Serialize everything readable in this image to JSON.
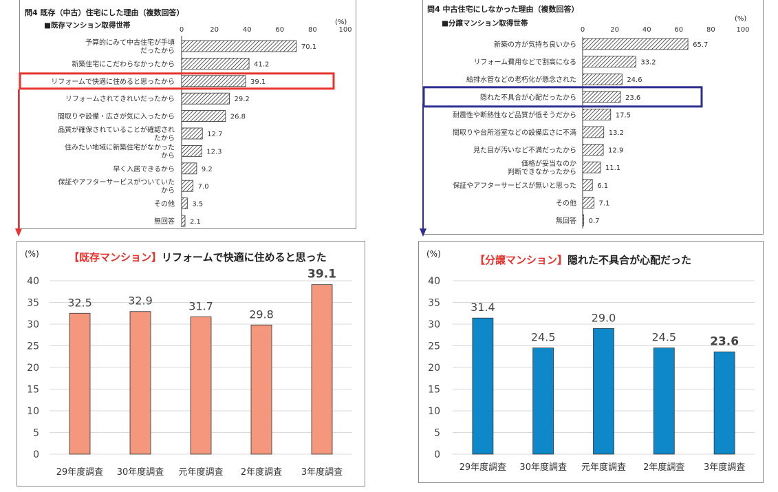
{
  "charts": {
    "top_left": {
      "question": "問4  既存（中古）住宅にした理由（複数回答）",
      "subtitle": "■既存マンション取得世帯",
      "unit": "(%)",
      "chart_data": {
        "type": "bar",
        "orientation": "horizontal",
        "categories": [
          [
            "予算的にみて中古住宅が手頃",
            "だったから"
          ],
          [
            "新築住宅にこだわらなかったから"
          ],
          [
            "リフォームで快適に住めると思ったから"
          ],
          [
            "リフォームされてきれいだったから"
          ],
          [
            "間取りや設備・広さが気に入ったから"
          ],
          [
            "品質が確保されていることが確認され",
            "たから"
          ],
          [
            "住みたい地域に新築住宅がなかった",
            "から"
          ],
          [
            "早く入居できるから"
          ],
          [
            "保証やアフターサービスがついていた",
            "から"
          ],
          [
            "その他"
          ],
          [
            "無回答"
          ]
        ],
        "values": [
          70.1,
          41.2,
          39.1,
          29.2,
          26.8,
          12.7,
          12.3,
          9.2,
          7.0,
          3.5,
          2.1
        ],
        "value_labels": [
          "70.1",
          "41.2",
          "39.1",
          "29.2",
          "26.8",
          "12.7",
          "12.3",
          "9.2",
          "7.0",
          "3.5",
          "2.1"
        ],
        "ticks": [
          "0",
          "20",
          "40",
          "60",
          "80",
          "100"
        ],
        "xlim": [
          0,
          100
        ],
        "highlight_index": 2,
        "highlight_color": "#e8322d"
      }
    },
    "top_right": {
      "question": "問4 中古住宅にしなかった理由（複数回答）",
      "subtitle": "■分譲マンション取得世帯",
      "unit": "(%)",
      "chart_data": {
        "type": "bar",
        "orientation": "horizontal",
        "categories": [
          [
            "新築の方が気持ち良いから"
          ],
          [
            "リフォーム費用などで割高になる"
          ],
          [
            "給排水管などの老朽化が懸念された"
          ],
          [
            "隠れた不具合が心配だったから"
          ],
          [
            "耐震性や断熱性など品質が低そうだから"
          ],
          [
            "間取りや台所浴室などの設備広さに不満"
          ],
          [
            "見た目が汚いなど不満だったから"
          ],
          [
            "価格が妥当なのか",
            "判断できなかったから"
          ],
          [
            "保証やアフターサービスが無いと思った"
          ],
          [
            "その他"
          ],
          [
            "無回答"
          ]
        ],
        "values": [
          65.7,
          33.2,
          24.6,
          23.6,
          17.5,
          13.2,
          12.9,
          11.1,
          6.1,
          7.1,
          0.7
        ],
        "value_labels": [
          "65.7",
          "33.2",
          "24.6",
          "23.6",
          "17.5",
          "13.2",
          "12.9",
          "11.1",
          "6.1",
          "7.1",
          "0.7"
        ],
        "ticks": [
          "0",
          "20",
          "40",
          "60",
          "80",
          "100"
        ],
        "xlim": [
          0,
          100
        ],
        "highlight_index": 3,
        "highlight_color": "#2e2f8f"
      }
    },
    "bottom_left": {
      "title_bracket": "【既存マンション】",
      "title_rest": "リフォームで快適に住めると思った",
      "unit": "(%)",
      "chart_data": {
        "type": "bar",
        "categories": [
          "29年度調査",
          "30年度調査",
          "元年度調査",
          "2年度調査",
          "3年度調査"
        ],
        "values": [
          32.5,
          32.9,
          31.7,
          29.8,
          39.1
        ],
        "value_labels": [
          "32.5",
          "32.9",
          "31.7",
          "29.8",
          "39.1"
        ],
        "bold_index": 4,
        "ylim": [
          0,
          40
        ],
        "yticks": [
          "0",
          "5",
          "10",
          "15",
          "20",
          "25",
          "30",
          "35",
          "40"
        ],
        "color": "#f4977c"
      }
    },
    "bottom_right": {
      "title_bracket": "【分譲マンション】",
      "title_rest": "隠れた不具合が心配だった",
      "unit": "(%)",
      "chart_data": {
        "type": "bar",
        "categories": [
          "29年度調査",
          "30年度調査",
          "元年度調査",
          "2年度調査",
          "3年度調査"
        ],
        "values": [
          31.4,
          24.5,
          29.0,
          24.5,
          23.6
        ],
        "value_labels": [
          "31.4",
          "24.5",
          "29.0",
          "24.5",
          "23.6"
        ],
        "bold_index": 4,
        "ylim": [
          0,
          40
        ],
        "yticks": [
          "0",
          "5",
          "10",
          "15",
          "20",
          "25",
          "30",
          "35",
          "40"
        ],
        "color": "#0e88c8"
      }
    }
  }
}
